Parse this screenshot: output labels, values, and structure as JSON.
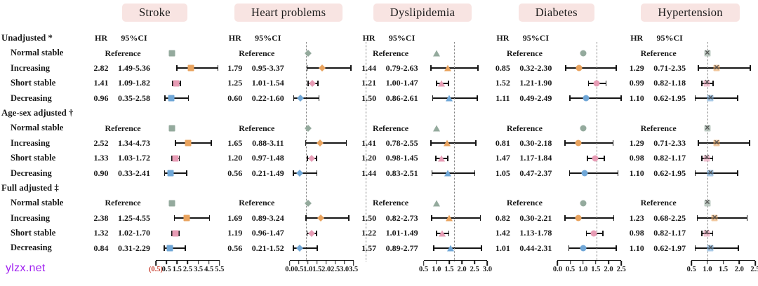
{
  "watermark": {
    "text": "ylzx.net",
    "color": "#a020f0"
  },
  "colors": {
    "reference": "#94aa9d",
    "increasing": "#e9a35e",
    "short_stable": "#e79cb5",
    "decreasing": "#70a7d7",
    "header_bg": "#f8e4e2",
    "axis": "#151515",
    "red_label": "#c63f2f",
    "dotted_line": "#808080",
    "text": "#1a1a1a"
  },
  "chart_data": {
    "type": "forest",
    "column_headers": {
      "hr": "HR",
      "ci": "95%CI"
    },
    "reference_label": "Reference",
    "reference_value": 1.0,
    "sections": [
      "Unadjusted *",
      "Age-sex adjusted †",
      "Full adjusted ‡"
    ],
    "row_labels": [
      "Normal stable",
      "Increasing",
      "Short stable",
      "Decreasing"
    ],
    "row_color_keys": [
      "increasing",
      "short_stable",
      "decreasing"
    ],
    "panels": [
      {
        "title": "Stroke",
        "marker": "square",
        "axis": {
          "min": -0.5,
          "max": 5.5,
          "ticks": [
            {
              "label": "(0.5)",
              "value": -0.5,
              "red": true
            },
            {
              "label": "0.5",
              "value": 0.5
            },
            {
              "label": "1.5",
              "value": 1.5
            },
            {
              "label": "2.5",
              "value": 2.5
            },
            {
              "label": "3.5",
              "value": 3.5
            },
            {
              "label": "4.5",
              "value": 4.5
            },
            {
              "label": "5.5",
              "value": 5.5
            }
          ]
        },
        "sections": [
          {
            "rows": [
              {
                "hr": "2.82",
                "ci": "1.49-5.36",
                "point": 2.82,
                "lo": 1.49,
                "hi": 5.36
              },
              {
                "hr": "1.41",
                "ci": "1.09-1.82",
                "point": 1.41,
                "lo": 1.09,
                "hi": 1.82
              },
              {
                "hr": "0.96",
                "ci": "0.35-2.58",
                "point": 0.96,
                "lo": 0.35,
                "hi": 2.58
              }
            ]
          },
          {
            "rows": [
              {
                "hr": "2.52",
                "ci": "1.34-4.73",
                "point": 2.52,
                "lo": 1.34,
                "hi": 4.73
              },
              {
                "hr": "1.33",
                "ci": "1.03-1.72",
                "point": 1.33,
                "lo": 1.03,
                "hi": 1.72
              },
              {
                "hr": "0.90",
                "ci": "0.33-2.41",
                "point": 0.9,
                "lo": 0.33,
                "hi": 2.41
              }
            ]
          },
          {
            "rows": [
              {
                "hr": "2.38",
                "ci": "1.25-4.55",
                "point": 2.38,
                "lo": 1.25,
                "hi": 4.55
              },
              {
                "hr": "1.32",
                "ci": "1.02-1.70",
                "point": 1.32,
                "lo": 1.02,
                "hi": 1.7
              },
              {
                "hr": "0.84",
                "ci": "0.31-2.29",
                "point": 0.84,
                "lo": 0.31,
                "hi": 2.29
              }
            ]
          }
        ]
      },
      {
        "title": "Heart problems",
        "marker": "diamond",
        "axis": {
          "min": 0.0,
          "max": 3.5,
          "ticks": [
            {
              "label": "0.0",
              "value": 0.0
            },
            {
              "label": "0.5",
              "value": 0.5
            },
            {
              "label": "1.0",
              "value": 1.0
            },
            {
              "label": "1.5",
              "value": 1.5
            },
            {
              "label": "2.0",
              "value": 2.0
            },
            {
              "label": "2.5",
              "value": 2.5
            },
            {
              "label": "3.0",
              "value": 3.0
            },
            {
              "label": "3.5",
              "value": 3.5
            }
          ]
        },
        "sections": [
          {
            "rows": [
              {
                "hr": "1.79",
                "ci": "0.95-3.37",
                "point": 1.79,
                "lo": 0.95,
                "hi": 3.37
              },
              {
                "hr": "1.25",
                "ci": "1.01-1.54",
                "point": 1.25,
                "lo": 1.01,
                "hi": 1.54
              },
              {
                "hr": "0.60",
                "ci": "0.22-1.60",
                "point": 0.6,
                "lo": 0.22,
                "hi": 1.6
              }
            ]
          },
          {
            "rows": [
              {
                "hr": "1.65",
                "ci": "0.88-3.11",
                "point": 1.65,
                "lo": 0.88,
                "hi": 3.11
              },
              {
                "hr": "1.20",
                "ci": "0.97-1.48",
                "point": 1.2,
                "lo": 0.97,
                "hi": 1.48
              },
              {
                "hr": "0.56",
                "ci": "0.21-1.49",
                "point": 0.56,
                "lo": 0.21,
                "hi": 1.49
              }
            ]
          },
          {
            "rows": [
              {
                "hr": "1.69",
                "ci": "0.89-3.24",
                "point": 1.69,
                "lo": 0.89,
                "hi": 3.24
              },
              {
                "hr": "1.19",
                "ci": "0.96-1.47",
                "point": 1.19,
                "lo": 0.96,
                "hi": 1.47
              },
              {
                "hr": "0.56",
                "ci": "0.21-1.52",
                "point": 0.56,
                "lo": 0.21,
                "hi": 1.52
              }
            ]
          }
        ]
      },
      {
        "title": "Dyslipidemia",
        "marker": "triangle",
        "axis": {
          "min": 0.5,
          "max": 3.0,
          "ticks": [
            {
              "label": "0.5",
              "value": 0.5
            },
            {
              "label": "1.0",
              "value": 1.0
            },
            {
              "label": "1.5",
              "value": 1.5
            },
            {
              "label": "2.0",
              "value": 2.0
            },
            {
              "label": "2.5",
              "value": 2.5
            },
            {
              "label": "3.0",
              "value": 3.0
            }
          ]
        },
        "sections": [
          {
            "rows": [
              {
                "hr": "1.44",
                "ci": "0.79-2.63",
                "point": 1.44,
                "lo": 0.79,
                "hi": 2.63
              },
              {
                "hr": "1.21",
                "ci": "1.00-1.47",
                "point": 1.21,
                "lo": 1.0,
                "hi": 1.47
              },
              {
                "hr": "1.50",
                "ci": "0.86-2.61",
                "point": 1.5,
                "lo": 0.86,
                "hi": 2.61
              }
            ]
          },
          {
            "rows": [
              {
                "hr": "1.41",
                "ci": "0.78-2.55",
                "point": 1.41,
                "lo": 0.78,
                "hi": 2.55
              },
              {
                "hr": "1.20",
                "ci": "0.98-1.45",
                "point": 1.2,
                "lo": 0.98,
                "hi": 1.45
              },
              {
                "hr": "1.44",
                "ci": "0.83-2.51",
                "point": 1.44,
                "lo": 0.83,
                "hi": 2.51
              }
            ]
          },
          {
            "rows": [
              {
                "hr": "1.50",
                "ci": "0.82-2.73",
                "point": 1.5,
                "lo": 0.82,
                "hi": 2.73
              },
              {
                "hr": "1.22",
                "ci": "1.01-1.49",
                "point": 1.22,
                "lo": 1.01,
                "hi": 1.49
              },
              {
                "hr": "1.57",
                "ci": "0.89-2.77",
                "point": 1.57,
                "lo": 0.89,
                "hi": 2.77
              }
            ]
          }
        ]
      },
      {
        "title": "Diabetes",
        "marker": "circle",
        "axis": {
          "min": 0.0,
          "max": 2.5,
          "ticks": [
            {
              "label": "0.0",
              "value": 0.0
            },
            {
              "label": "0.5",
              "value": 0.5
            },
            {
              "label": "1.0",
              "value": 1.0
            },
            {
              "label": "1.5",
              "value": 1.5
            },
            {
              "label": "2.0",
              "value": 2.0
            },
            {
              "label": "2.5",
              "value": 2.5
            }
          ]
        },
        "sections": [
          {
            "rows": [
              {
                "hr": "0.85",
                "ci": "0.32-2.30",
                "point": 0.85,
                "lo": 0.32,
                "hi": 2.3
              },
              {
                "hr": "1.52",
                "ci": "1.21-1.90",
                "point": 1.52,
                "lo": 1.21,
                "hi": 1.9
              },
              {
                "hr": "1.11",
                "ci": "0.49-2.49",
                "point": 1.11,
                "lo": 0.49,
                "hi": 2.49
              }
            ]
          },
          {
            "rows": [
              {
                "hr": "0.81",
                "ci": "0.30-2.18",
                "point": 0.81,
                "lo": 0.3,
                "hi": 2.18
              },
              {
                "hr": "1.47",
                "ci": "1.17-1.84",
                "point": 1.47,
                "lo": 1.17,
                "hi": 1.84
              },
              {
                "hr": "1.05",
                "ci": "0.47-2.37",
                "point": 1.05,
                "lo": 0.47,
                "hi": 2.37
              }
            ]
          },
          {
            "rows": [
              {
                "hr": "0.82",
                "ci": "0.30-2.21",
                "point": 0.82,
                "lo": 0.3,
                "hi": 2.21
              },
              {
                "hr": "1.42",
                "ci": "1.13-1.78",
                "point": 1.42,
                "lo": 1.13,
                "hi": 1.78
              },
              {
                "hr": "1.01",
                "ci": "0.44-2.31",
                "point": 1.01,
                "lo": 0.44,
                "hi": 2.31
              }
            ]
          }
        ]
      },
      {
        "title": "Hypertension",
        "marker": "cross",
        "axis": {
          "min": 0.5,
          "max": 2.5,
          "ticks": [
            {
              "label": "0.5",
              "value": 0.5
            },
            {
              "label": "1.0",
              "value": 1.0
            },
            {
              "label": "1.5",
              "value": 1.5
            },
            {
              "label": "2.0",
              "value": 2.0
            },
            {
              "label": "2.5",
              "value": 2.5
            }
          ]
        },
        "sections": [
          {
            "rows": [
              {
                "hr": "1.29",
                "ci": "0.71-2.35",
                "point": 1.29,
                "lo": 0.71,
                "hi": 2.35
              },
              {
                "hr": "0.99",
                "ci": "0.82-1.18",
                "point": 0.99,
                "lo": 0.82,
                "hi": 1.18
              },
              {
                "hr": "1.10",
                "ci": "0.62-1.95",
                "point": 1.1,
                "lo": 0.62,
                "hi": 1.95
              }
            ]
          },
          {
            "rows": [
              {
                "hr": "1.29",
                "ci": "0.71-2.33",
                "point": 1.29,
                "lo": 0.71,
                "hi": 2.33
              },
              {
                "hr": "0.98",
                "ci": "0.82-1.17",
                "point": 0.98,
                "lo": 0.82,
                "hi": 1.17
              },
              {
                "hr": "1.10",
                "ci": "0.62-1.95",
                "point": 1.1,
                "lo": 0.62,
                "hi": 1.95
              }
            ]
          },
          {
            "rows": [
              {
                "hr": "1.23",
                "ci": "0.68-2.25",
                "point": 1.23,
                "lo": 0.68,
                "hi": 2.25
              },
              {
                "hr": "0.98",
                "ci": "0.82-1.17",
                "point": 0.98,
                "lo": 0.82,
                "hi": 1.17
              },
              {
                "hr": "1.10",
                "ci": "0.62-1.97",
                "point": 1.1,
                "lo": 0.62,
                "hi": 1.97
              }
            ]
          }
        ]
      }
    ]
  }
}
